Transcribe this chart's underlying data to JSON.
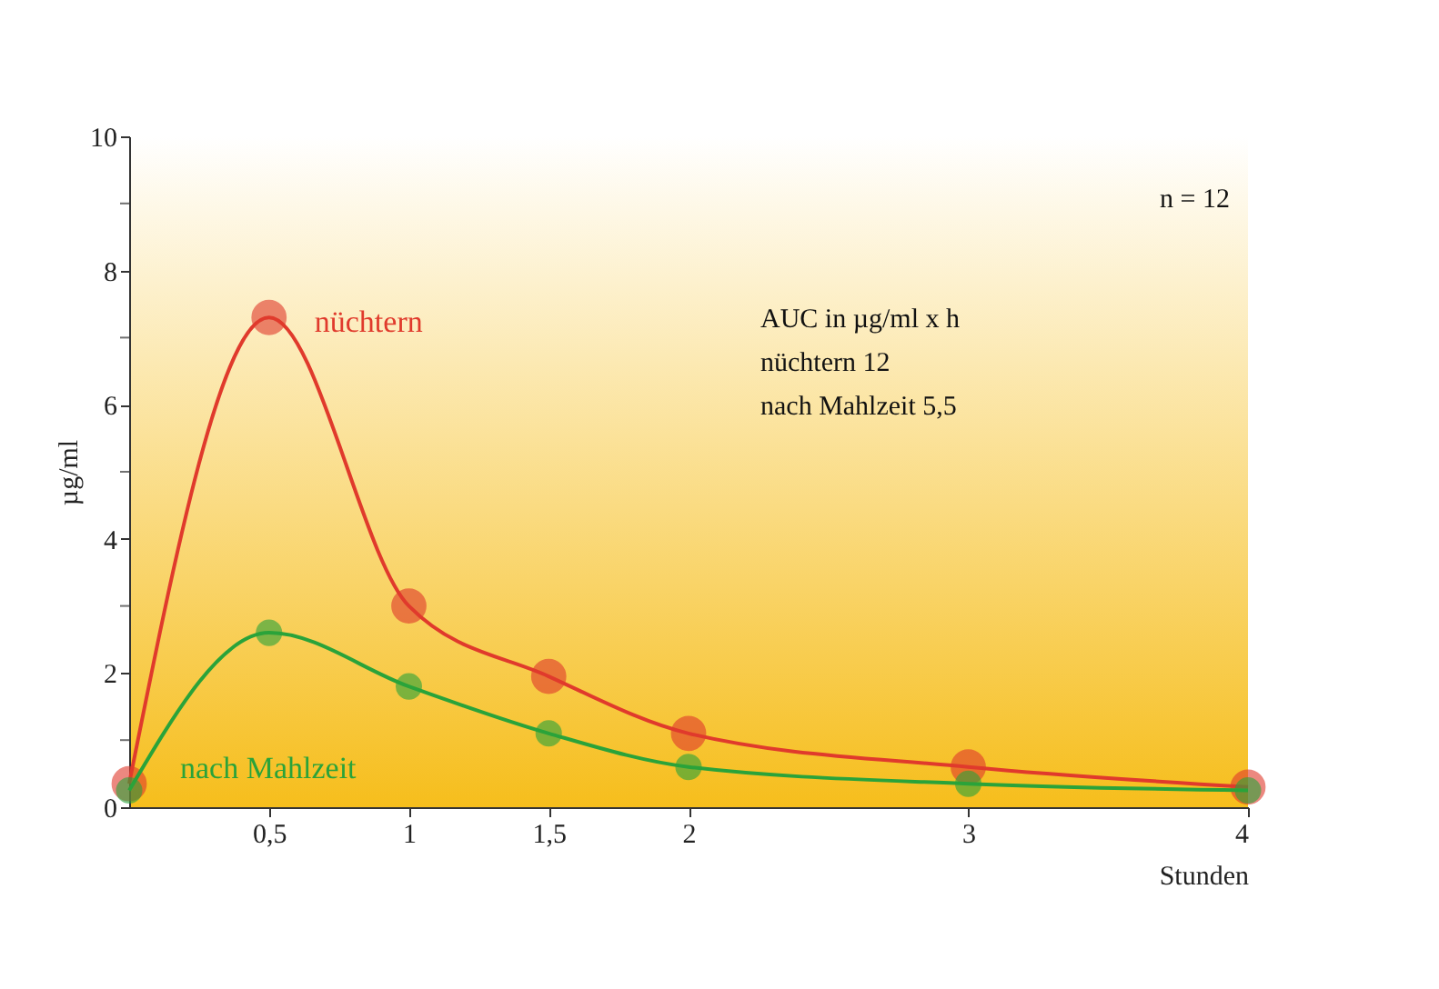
{
  "chart_data": {
    "type": "line",
    "xlabel": "Stunden",
    "ylabel": "µg/ml",
    "x": [
      0,
      0.5,
      1,
      1.5,
      2,
      3,
      4
    ],
    "series": [
      {
        "name": "nüchtern",
        "color": "#e03a2c",
        "values": [
          0.35,
          7.3,
          3.0,
          1.95,
          1.1,
          0.6,
          0.3
        ]
      },
      {
        "name": "nach Mahlzeit",
        "color": "#2aa33a",
        "values": [
          0.25,
          2.6,
          1.8,
          1.1,
          0.6,
          0.35,
          0.25
        ]
      }
    ],
    "xlim": [
      0,
      4
    ],
    "xticks": [
      {
        "value": 0.5,
        "label": "0,5"
      },
      1,
      {
        "value": 1.5,
        "label": "1,5"
      },
      2,
      3,
      4
    ],
    "ylim": [
      0,
      10
    ],
    "yticks": [
      0,
      {
        "value": 1,
        "label": null
      },
      2,
      {
        "value": 3,
        "label": null
      },
      4,
      {
        "value": 5,
        "label": null
      },
      6,
      {
        "value": 7,
        "label": null
      },
      8,
      {
        "value": 9,
        "label": null
      },
      10
    ],
    "marker": "circle",
    "line_style": "solid",
    "grid": false,
    "annotations": [
      "n = 12",
      "AUC in µg/ml x h",
      "nüchtern 12",
      "nach Mahlzeit 5,5"
    ]
  }
}
